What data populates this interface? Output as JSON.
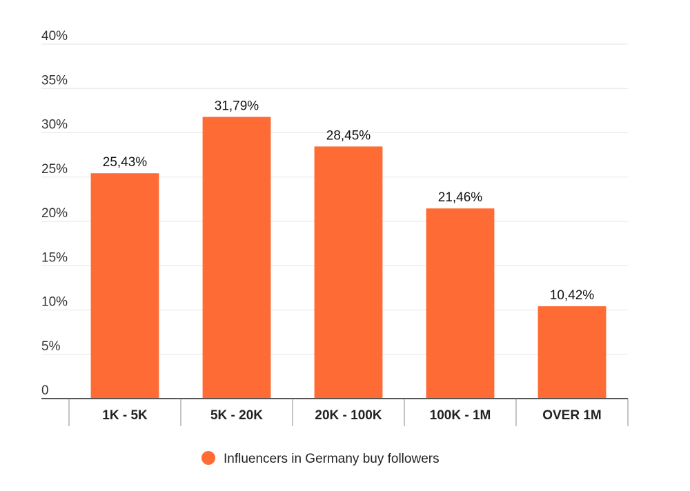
{
  "chart_data": {
    "type": "bar",
    "categories": [
      "1K - 5K",
      "5K - 20K",
      "20K - 100K",
      "100K - 1M",
      "OVER 1M"
    ],
    "series": [
      {
        "name": "Influencers in Germany buy followers",
        "values": [
          25.43,
          31.79,
          28.45,
          21.46,
          10.42
        ],
        "labels": [
          "25,43%",
          "31,79%",
          "28,45%",
          "21,46%",
          "10,42%"
        ],
        "color": "#ff6b35"
      }
    ],
    "yticks": [
      0,
      5,
      10,
      15,
      20,
      25,
      30,
      35,
      40
    ],
    "ytick_labels": [
      "0",
      "5%",
      "10%",
      "15%",
      "20%",
      "25%",
      "30%",
      "35%",
      "40%"
    ],
    "ylim": [
      0,
      40
    ],
    "grid": true,
    "legend_position": "bottom-center",
    "colors": {
      "bar": "#ff6b35",
      "grid": "#e6e6e6",
      "axis": "#555555"
    }
  }
}
